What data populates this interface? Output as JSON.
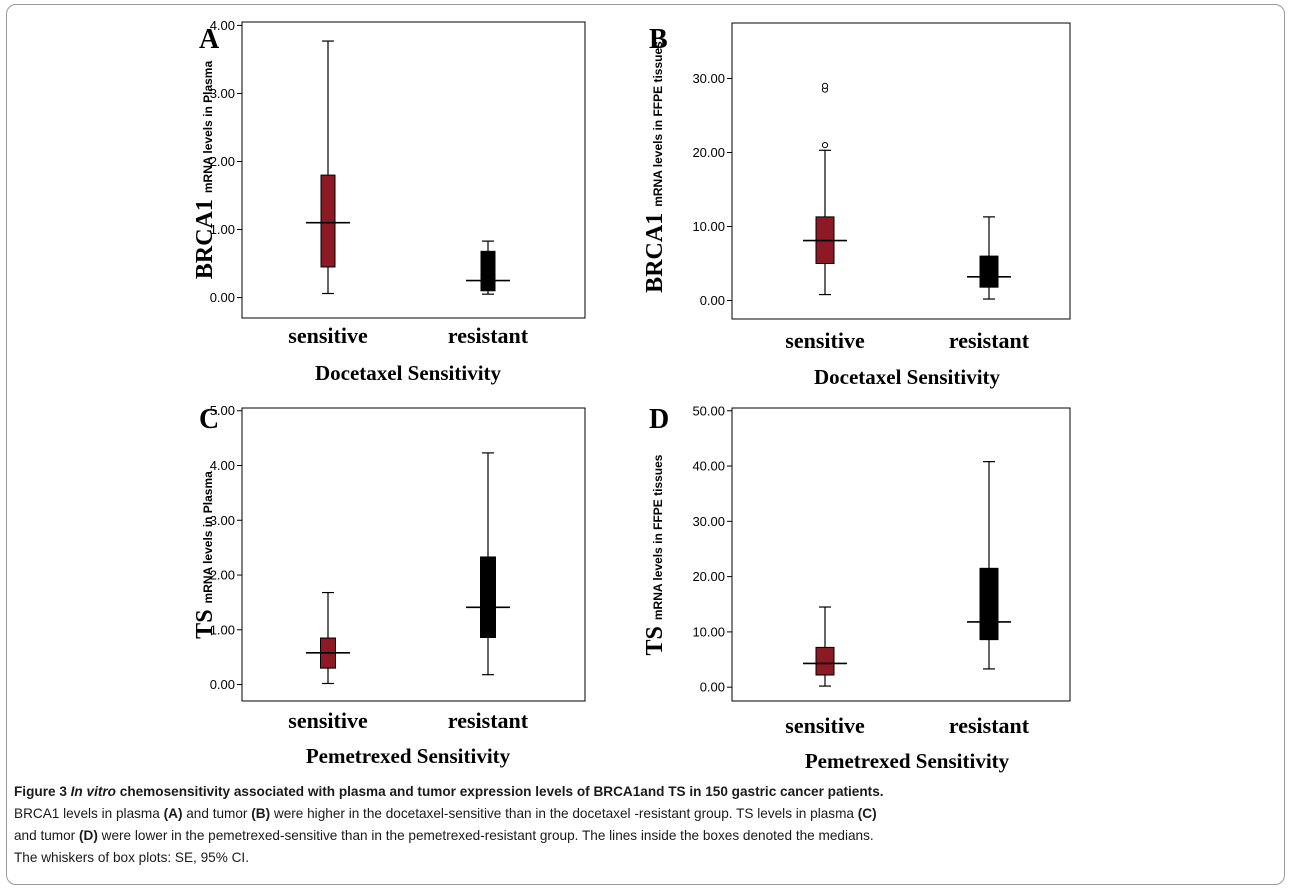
{
  "colors": {
    "sensitive": "#8b1a24",
    "resistant": "#000000",
    "axis": "#000000"
  },
  "chart_data": [
    {
      "type": "box",
      "panel": "A",
      "ylabel_main": "BRCA1",
      "ylabel_sub": "mRNA levels in Plasma",
      "xlabel": "Docetaxel Sensitivity",
      "ylim": [
        -0.3,
        4.05
      ],
      "yticks": [
        0,
        1,
        2,
        3,
        4
      ],
      "yticklabels": [
        "0.00",
        "1.00",
        "2.00",
        "3.00",
        "4.00"
      ],
      "categories": [
        "sensitive",
        "resistant"
      ],
      "boxes": [
        {
          "whisker_low": 0.06,
          "q1": 0.45,
          "median": 1.1,
          "q3": 1.8,
          "whisker_high": 3.77,
          "outliers": []
        },
        {
          "whisker_low": 0.05,
          "q1": 0.1,
          "median": 0.25,
          "q3": 0.68,
          "whisker_high": 0.83,
          "outliers": []
        }
      ]
    },
    {
      "type": "box",
      "panel": "B",
      "ylabel_main": "BRCA1",
      "ylabel_sub": "mRNA levels in FFPE tissues",
      "xlabel": "Docetaxel Sensitivity",
      "ylim": [
        -2.5,
        37.5
      ],
      "yticks": [
        0,
        10,
        20,
        30
      ],
      "yticklabels": [
        "0.00",
        "10.00",
        "20.00",
        "30.00"
      ],
      "categories": [
        "sensitive",
        "resistant"
      ],
      "boxes": [
        {
          "whisker_low": 0.8,
          "q1": 5.0,
          "median": 8.1,
          "q3": 11.3,
          "whisker_high": 20.3,
          "outliers": [
            21.0,
            28.5,
            29.0
          ]
        },
        {
          "whisker_low": 0.2,
          "q1": 1.8,
          "median": 3.2,
          "q3": 6.0,
          "whisker_high": 11.3,
          "outliers": []
        }
      ]
    },
    {
      "type": "box",
      "panel": "C",
      "ylabel_main": "TS",
      "ylabel_sub": "mRNA levels in Plasma",
      "xlabel": "Pemetrexed Sensitivity",
      "ylim": [
        -0.3,
        5.05
      ],
      "yticks": [
        0,
        1,
        2,
        3,
        4,
        5
      ],
      "yticklabels": [
        "0.00",
        "1.00",
        "2.00",
        "3.00",
        "4.00",
        "5.00"
      ],
      "categories": [
        "sensitive",
        "resistant"
      ],
      "boxes": [
        {
          "whisker_low": 0.02,
          "q1": 0.3,
          "median": 0.58,
          "q3": 0.85,
          "whisker_high": 1.68,
          "outliers": []
        },
        {
          "whisker_low": 0.18,
          "q1": 0.86,
          "median": 1.41,
          "q3": 2.33,
          "whisker_high": 4.23,
          "outliers": []
        }
      ]
    },
    {
      "type": "box",
      "panel": "D",
      "ylabel_main": "TS",
      "ylabel_sub": "mRNA levels in FFPE tissues",
      "xlabel": "Pemetrexed Sensitivity",
      "ylim": [
        -2.5,
        50.5
      ],
      "yticks": [
        0,
        10,
        20,
        30,
        40,
        50
      ],
      "yticklabels": [
        "0.00",
        "10.00",
        "20.00",
        "30.00",
        "40.00",
        "50.00"
      ],
      "categories": [
        "sensitive",
        "resistant"
      ],
      "boxes": [
        {
          "whisker_low": 0.2,
          "q1": 2.2,
          "median": 4.3,
          "q3": 7.2,
          "whisker_high": 14.5,
          "outliers": []
        },
        {
          "whisker_low": 3.3,
          "q1": 8.6,
          "median": 11.8,
          "q3": 21.5,
          "whisker_high": 40.8,
          "outliers": []
        }
      ]
    }
  ],
  "caption": {
    "title": "Figure 3 In vitro chemosensitivity associated with plasma and tumor expression levels of BRCA1and TS in 150 gastric cancer patients.",
    "line1_a": "BRCA1 levels in plasma ",
    "line1_b": "(A)",
    "line1_c": " and tumor ",
    "line1_d": "(B)",
    "line1_e": " were higher in the docetaxel-sensitive than in the docetaxel -resistant group. TS levels in plasma ",
    "line1_f": "(C)",
    "line2_a": "and tumor ",
    "line2_b": "(D)",
    "line2_c": " were lower in the pemetrexed-sensitive than in the pemetrexed-resistant group. The lines inside the boxes denoted the medians.",
    "line3": "The whiskers of box plots: SE, 95% CI."
  }
}
